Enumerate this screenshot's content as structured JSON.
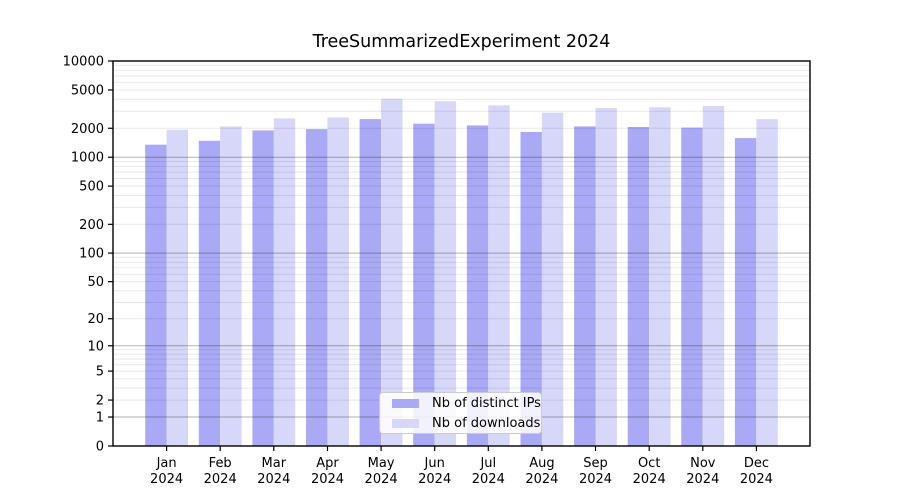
{
  "chart_data": {
    "type": "bar",
    "title": "TreeSummarizedExperiment 2024",
    "categories": [
      "Jan",
      "Feb",
      "Mar",
      "Apr",
      "May",
      "Jun",
      "Jul",
      "Aug",
      "Sep",
      "Oct",
      "Nov",
      "Dec"
    ],
    "x_year_label": "2024",
    "series": [
      {
        "key": "distinct-ips",
        "name": "Nb of distinct IPs",
        "color": "#a9a9f5",
        "values": [
          1350,
          1480,
          1900,
          1960,
          2490,
          2230,
          2140,
          1830,
          2090,
          2060,
          2030,
          1580
        ]
      },
      {
        "key": "downloads",
        "name": "Nb of downloads",
        "color": "#d7d7f9",
        "values": [
          1930,
          2090,
          2530,
          2590,
          4050,
          3820,
          3460,
          2900,
          3250,
          3300,
          3410,
          2490
        ]
      }
    ],
    "y_ticks": [
      0,
      1,
      2,
      5,
      10,
      20,
      50,
      100,
      200,
      500,
      1000,
      2000,
      5000,
      10000
    ],
    "ylim": [
      0,
      10000
    ],
    "y_scale": "log10(1+y)",
    "grid": "horizontal minor log gridlines, major at powers of 10",
    "legend_position": "inside-bottom-center"
  }
}
